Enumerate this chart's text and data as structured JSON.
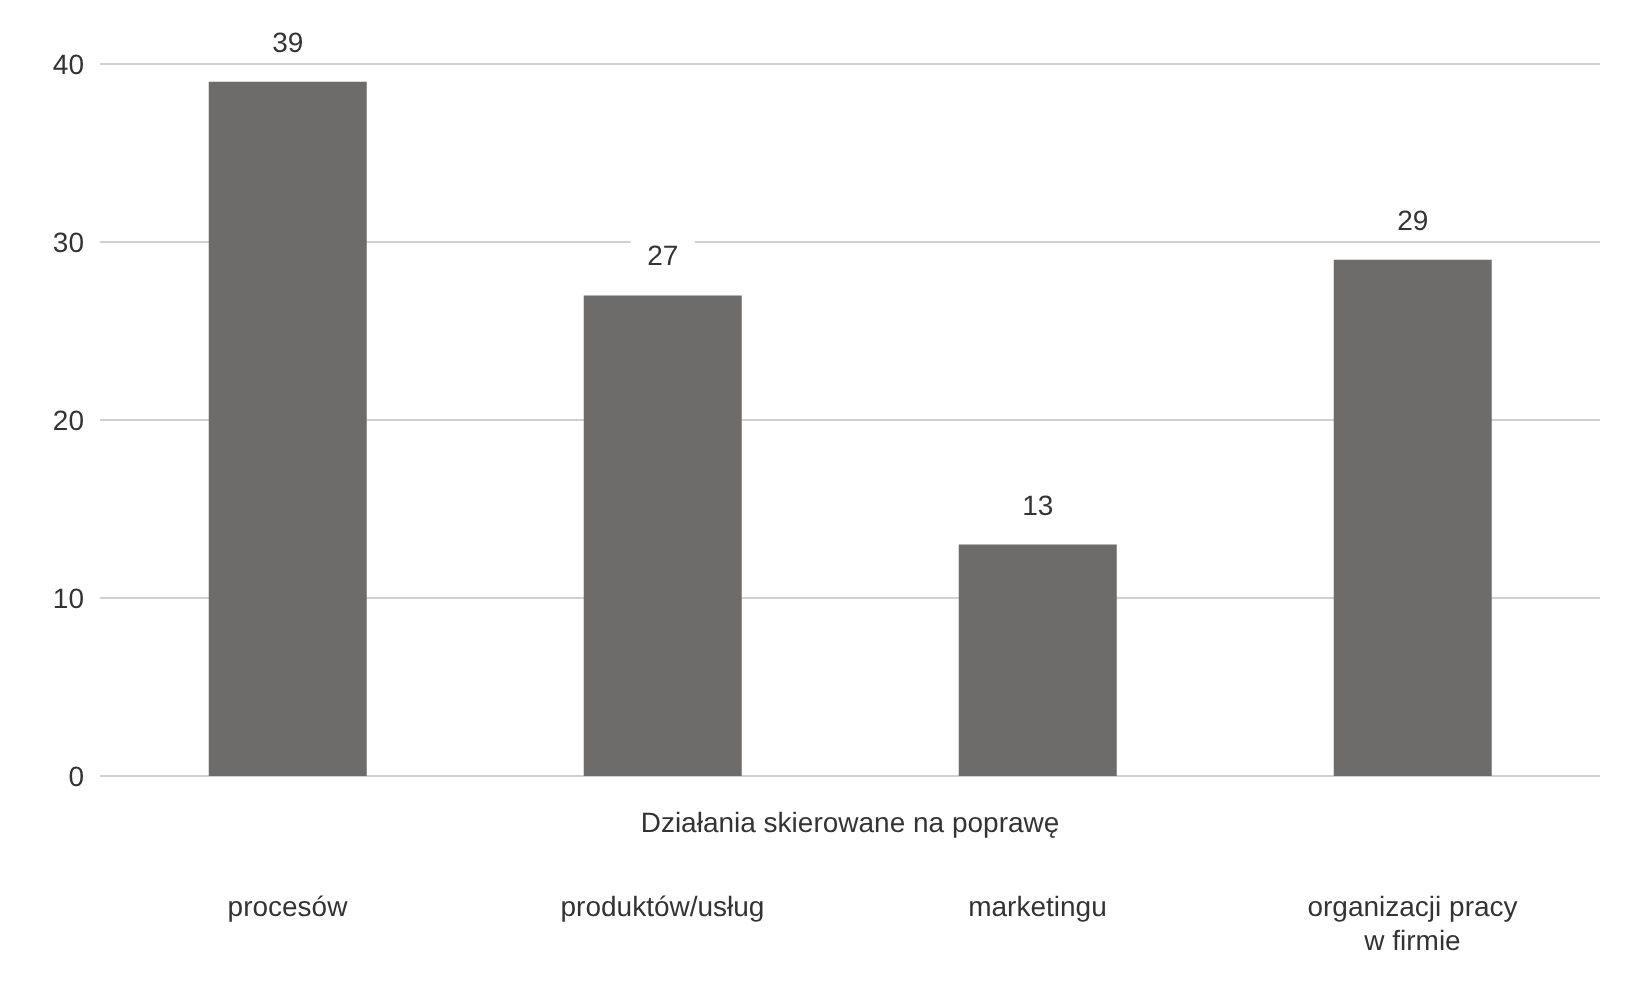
{
  "chart_data": {
    "type": "bar",
    "xlabel": "Działania skierowane na poprawę",
    "categories": [
      "procesów",
      "produktów/usług",
      "marketingu",
      "organizacji pracy w firmie"
    ],
    "values": [
      39,
      27,
      13,
      29
    ],
    "color": "#6d6c6a",
    "ylim": [
      0,
      40
    ],
    "yticks": [
      0,
      10,
      20,
      30,
      40
    ],
    "grid": "y",
    "data_labels": true
  }
}
